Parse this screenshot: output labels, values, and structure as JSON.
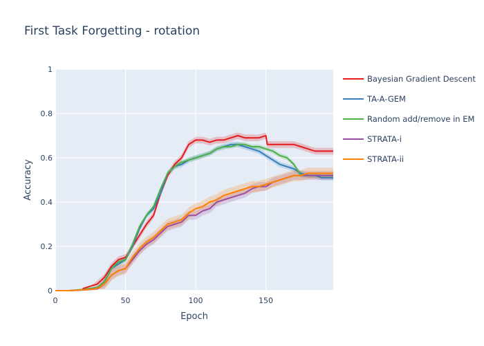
{
  "chart_data": {
    "type": "line",
    "title": "First Task Forgetting - rotation",
    "xlabel": "Epoch",
    "ylabel": "Accuracy",
    "xlim": [
      0,
      198
    ],
    "ylim": [
      0,
      1
    ],
    "xticks": [
      0,
      50,
      100,
      150
    ],
    "yticks": [
      0,
      0.2,
      0.4,
      0.6,
      0.8,
      1
    ],
    "ytick_labels": [
      "0",
      "0.2",
      "0.4",
      "0.6",
      "0.8",
      "1"
    ],
    "grid": true,
    "legend_position": "right",
    "series": [
      {
        "name": "Bayesian Gradient Descent",
        "color": "#e41a1c",
        "band": 0.015,
        "x": [
          0,
          10,
          19,
          20,
          25,
          30,
          35,
          40,
          45,
          50,
          55,
          60,
          65,
          70,
          75,
          80,
          85,
          90,
          95,
          100,
          105,
          110,
          115,
          120,
          125,
          130,
          135,
          140,
          145,
          150,
          151,
          155,
          160,
          165,
          170,
          175,
          180,
          185,
          190,
          195,
          198
        ],
        "y": [
          0,
          0,
          0.003,
          0.01,
          0.02,
          0.03,
          0.06,
          0.11,
          0.14,
          0.15,
          0.2,
          0.25,
          0.3,
          0.34,
          0.44,
          0.52,
          0.57,
          0.6,
          0.66,
          0.68,
          0.68,
          0.67,
          0.68,
          0.68,
          0.69,
          0.7,
          0.69,
          0.69,
          0.69,
          0.7,
          0.66,
          0.66,
          0.66,
          0.66,
          0.66,
          0.65,
          0.64,
          0.63,
          0.63,
          0.63,
          0.63
        ]
      },
      {
        "name": "TA-A-GEM",
        "color": "#377eb8",
        "band": 0.012,
        "x": [
          0,
          10,
          20,
          25,
          30,
          35,
          40,
          45,
          50,
          55,
          60,
          65,
          70,
          75,
          80,
          85,
          90,
          95,
          100,
          105,
          110,
          115,
          120,
          125,
          130,
          135,
          140,
          145,
          150,
          155,
          160,
          165,
          170,
          175,
          180,
          185,
          190,
          195,
          198
        ],
        "y": [
          0,
          0,
          0.005,
          0.01,
          0.015,
          0.04,
          0.1,
          0.12,
          0.14,
          0.2,
          0.28,
          0.34,
          0.37,
          0.44,
          0.53,
          0.56,
          0.57,
          0.59,
          0.6,
          0.61,
          0.62,
          0.64,
          0.65,
          0.66,
          0.66,
          0.65,
          0.64,
          0.63,
          0.61,
          0.59,
          0.57,
          0.56,
          0.55,
          0.53,
          0.52,
          0.52,
          0.51,
          0.51,
          0.51
        ]
      },
      {
        "name": "Random add/remove in EM",
        "color": "#4daf4a",
        "band": 0.01,
        "x": [
          0,
          10,
          20,
          25,
          30,
          35,
          40,
          45,
          50,
          55,
          60,
          65,
          70,
          75,
          80,
          85,
          90,
          95,
          100,
          105,
          110,
          115,
          120,
          125,
          130,
          135,
          140,
          145,
          150,
          155,
          160,
          165,
          170,
          175,
          180,
          185,
          190,
          195,
          198
        ],
        "y": [
          0,
          0,
          0.005,
          0.01,
          0.015,
          0.04,
          0.1,
          0.13,
          0.14,
          0.21,
          0.29,
          0.34,
          0.38,
          0.46,
          0.53,
          0.56,
          0.58,
          0.59,
          0.6,
          0.61,
          0.62,
          0.64,
          0.65,
          0.65,
          0.66,
          0.66,
          0.65,
          0.65,
          0.64,
          0.63,
          0.61,
          0.6,
          0.57,
          0.52,
          0.52,
          0.52,
          0.52,
          0.52,
          0.52
        ]
      },
      {
        "name": "STRATA-i",
        "color": "#984ea3",
        "band": 0.02,
        "x": [
          0,
          10,
          20,
          25,
          30,
          35,
          40,
          45,
          50,
          55,
          60,
          65,
          70,
          75,
          80,
          85,
          90,
          95,
          100,
          105,
          110,
          115,
          120,
          125,
          130,
          135,
          140,
          145,
          150,
          155,
          160,
          165,
          170,
          175,
          180,
          185,
          190,
          195,
          198
        ],
        "y": [
          0,
          0,
          0.003,
          0.005,
          0.008,
          0.03,
          0.07,
          0.09,
          0.1,
          0.14,
          0.18,
          0.21,
          0.23,
          0.26,
          0.29,
          0.3,
          0.31,
          0.34,
          0.34,
          0.36,
          0.37,
          0.4,
          0.41,
          0.42,
          0.43,
          0.44,
          0.46,
          0.47,
          0.47,
          0.49,
          0.5,
          0.51,
          0.52,
          0.52,
          0.52,
          0.52,
          0.52,
          0.52,
          0.52
        ]
      },
      {
        "name": "STRATA-ii",
        "color": "#ff7f00",
        "band": 0.025,
        "x": [
          0,
          10,
          20,
          25,
          30,
          35,
          40,
          45,
          50,
          55,
          60,
          65,
          70,
          75,
          80,
          85,
          90,
          95,
          100,
          105,
          110,
          115,
          120,
          125,
          130,
          135,
          140,
          145,
          150,
          155,
          160,
          165,
          170,
          175,
          180,
          185,
          190,
          195,
          198
        ],
        "y": [
          0,
          0,
          0.004,
          0.006,
          0.01,
          0.03,
          0.07,
          0.09,
          0.1,
          0.15,
          0.19,
          0.22,
          0.24,
          0.27,
          0.3,
          0.31,
          0.32,
          0.35,
          0.37,
          0.38,
          0.4,
          0.41,
          0.43,
          0.44,
          0.45,
          0.46,
          0.47,
          0.47,
          0.48,
          0.49,
          0.5,
          0.51,
          0.52,
          0.52,
          0.53,
          0.53,
          0.53,
          0.53,
          0.53
        ]
      }
    ]
  }
}
